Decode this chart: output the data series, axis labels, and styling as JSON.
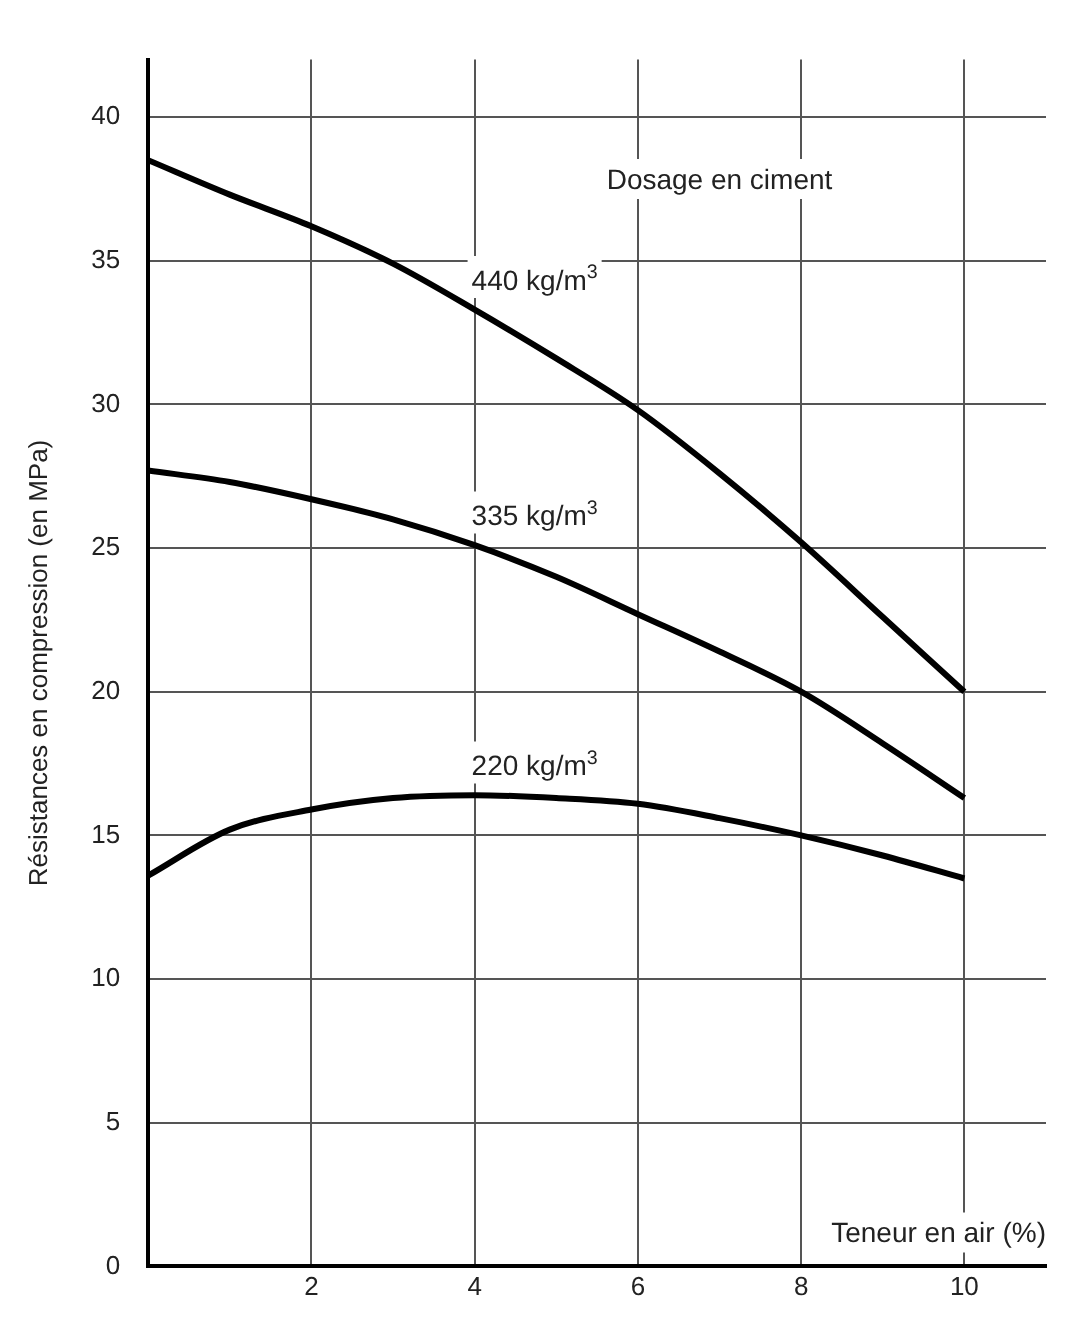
{
  "chart_data": {
    "type": "line",
    "xlabel": "Teneur en air (%)",
    "ylabel": "Résistances en compression (en MPa)",
    "annotations": [
      "Dosage en ciment"
    ],
    "x": [
      0,
      1,
      2,
      3,
      4,
      5,
      6,
      7,
      8,
      9,
      10
    ],
    "series": [
      {
        "name": "440 kg/m$^{3}$",
        "color": "#000000",
        "values": [
          38.5,
          37.3,
          36.2,
          34.9,
          33.3,
          31.6,
          29.8,
          27.6,
          25.2,
          22.6,
          20
        ]
      },
      {
        "name": "335 kg/m$^{3}$",
        "color": "#000000",
        "values": [
          27.7,
          27.3,
          26.7,
          26,
          25.1,
          24,
          22.7,
          21.4,
          20,
          18.2,
          16.3
        ]
      },
      {
        "name": "220 kg/m$^{3}$",
        "color": "#000000",
        "values": [
          13.6,
          15.2,
          15.9,
          16.3,
          16.4,
          16.3,
          16.1,
          15.6,
          15,
          14.3,
          13.5
        ]
      }
    ],
    "xlim": [
      0,
      11
    ],
    "ylim": [
      0,
      42
    ],
    "xticks": [
      2,
      4,
      6,
      8,
      10
    ],
    "yticks": [
      0,
      5,
      10,
      15,
      20,
      25,
      30,
      35,
      40
    ],
    "grid": true,
    "legend": false,
    "marker": "none",
    "line_style": "solid"
  }
}
